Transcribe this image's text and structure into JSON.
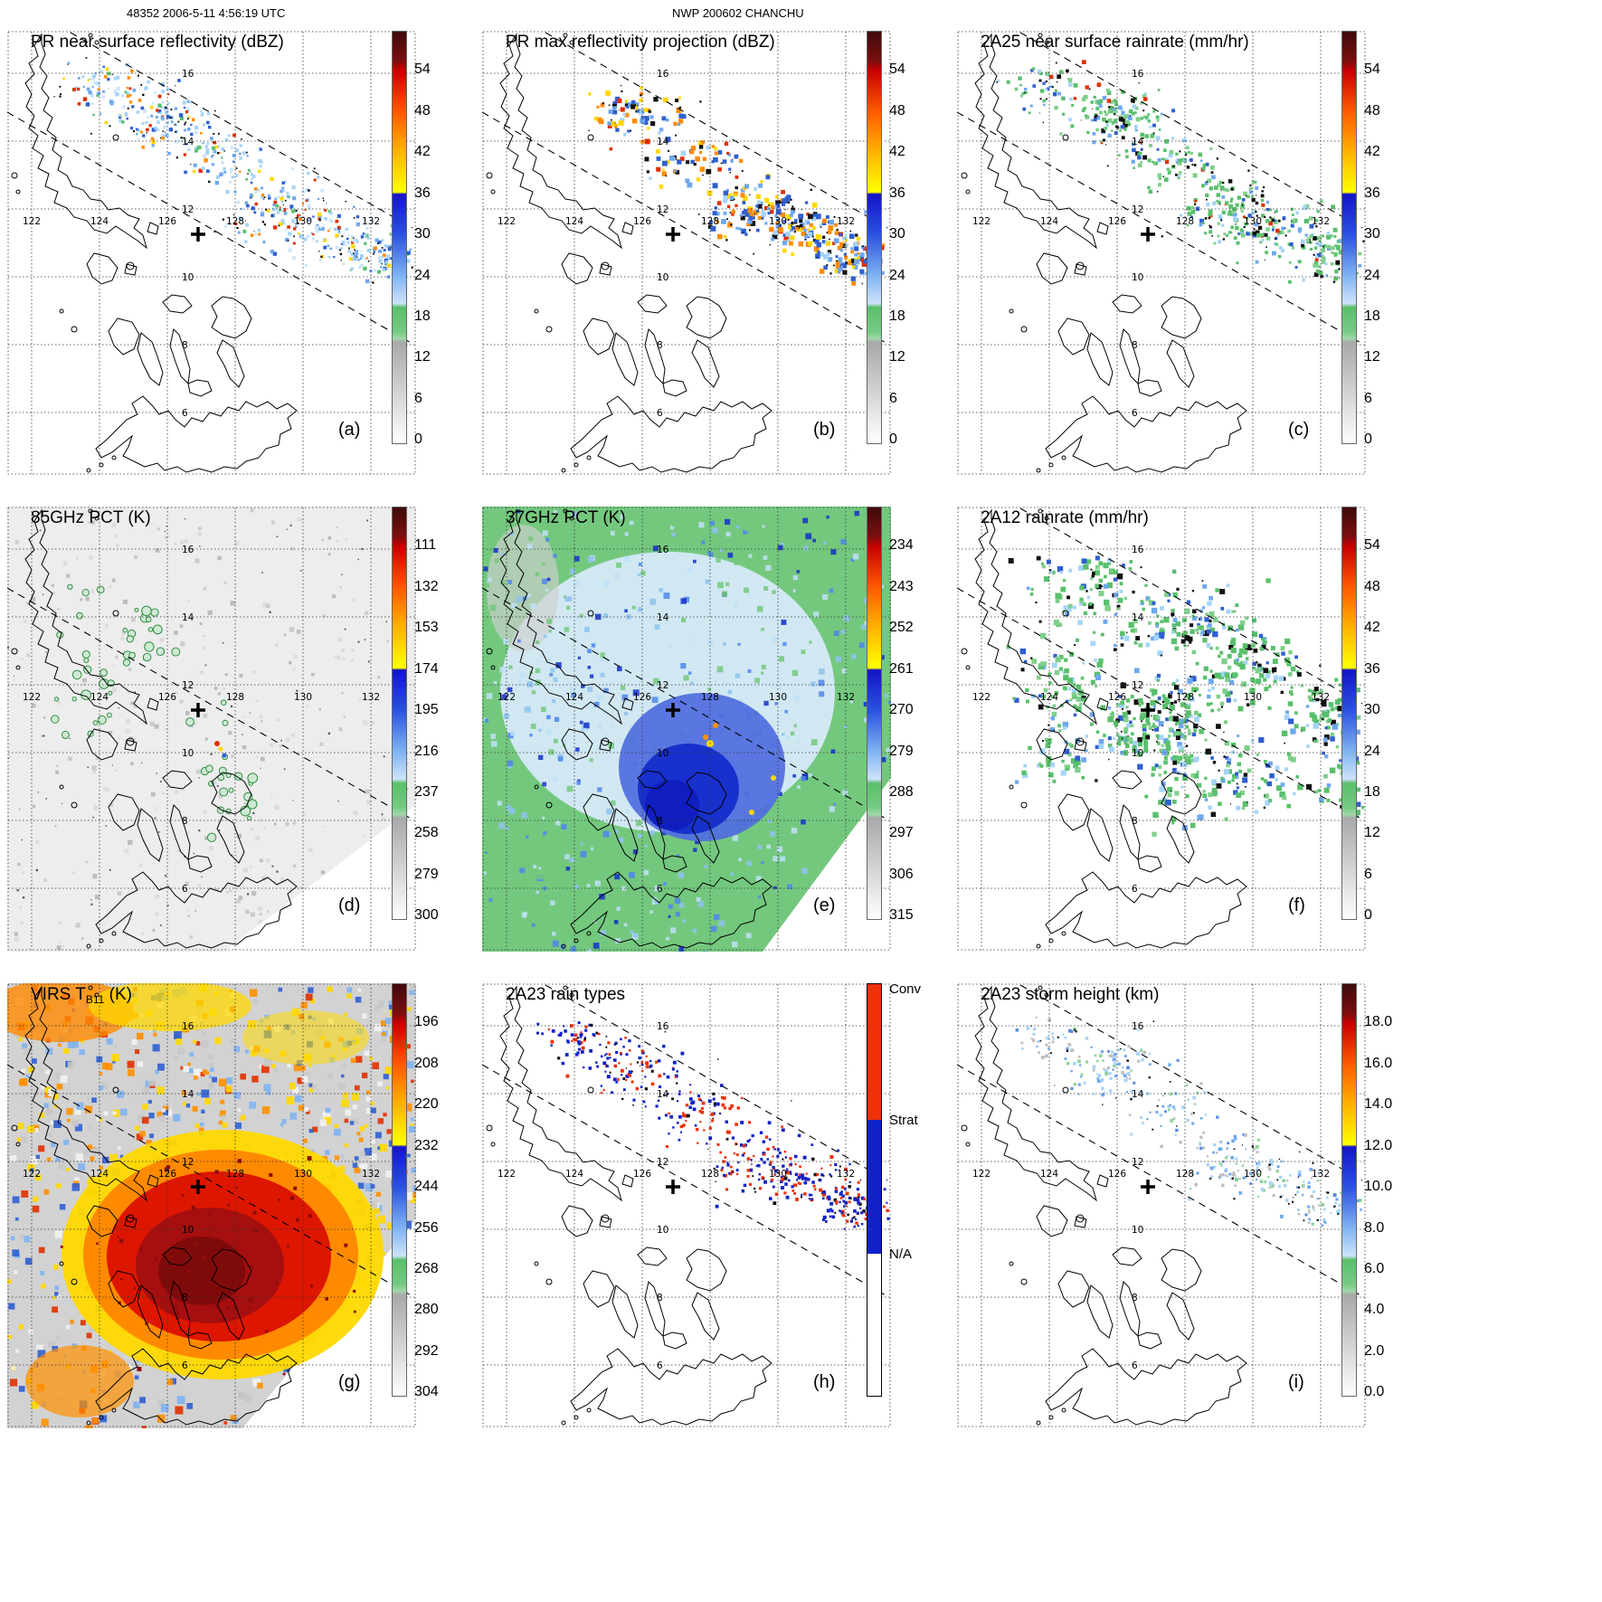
{
  "header": {
    "left": "48352 2006-5-11 4:56:19 UTC",
    "center": "NWP 200602 CHANCHU"
  },
  "map": {
    "lon_labels": [
      "122",
      "124",
      "126",
      "128",
      "130",
      "132"
    ],
    "lat_labels": [
      "16",
      "14",
      "12",
      "10",
      "8",
      "6"
    ]
  },
  "colors": {
    "standard_gradient": [
      [
        0,
        "#3f0a0a"
      ],
      [
        0.07,
        "#7a0f0f"
      ],
      [
        0.095,
        "#c80000"
      ],
      [
        0.194,
        "#ff5a00"
      ],
      [
        0.294,
        "#ffb400"
      ],
      [
        0.39,
        "#ffff00"
      ],
      [
        0.395,
        "#1414c8"
      ],
      [
        0.493,
        "#2a52e0"
      ],
      [
        0.592,
        "#7fb2f2"
      ],
      [
        0.66,
        "#cde3fa"
      ],
      [
        0.67,
        "#59c06a"
      ],
      [
        0.73,
        "#77ca84"
      ],
      [
        0.745,
        "#9fd8a8"
      ],
      [
        0.755,
        "#a9a9a9"
      ],
      [
        0.89,
        "#d8d8d8"
      ],
      [
        0.99,
        "#fbfbfb"
      ],
      [
        1,
        "#ffffff"
      ]
    ],
    "raintype": {
      "conv": "#f03008",
      "strat": "#1022c8",
      "na": "#ffffff"
    }
  },
  "panels": [
    {
      "id": "a",
      "letter": "(a)",
      "title": "PR near surface reflectivity (dBZ)",
      "colorbar": {
        "type": "standard",
        "ticks": [
          "54",
          "48",
          "42",
          "36",
          "30",
          "24",
          "18",
          "12",
          "6",
          "0"
        ]
      },
      "speckle_colors": [
        [
          "#a6d4f7",
          0.28
        ],
        [
          "#6fa8ee",
          0.2
        ],
        [
          "#2f5fd0",
          0.12
        ],
        [
          "#cfe6fb",
          0.15
        ],
        [
          "#59c06c",
          0.08
        ],
        [
          "#ffd800",
          0.05
        ],
        [
          "#ff8c00",
          0.06
        ],
        [
          "#e03000",
          0.06
        ]
      ]
    },
    {
      "id": "b",
      "letter": "(b)",
      "title": "PR max reflectivity projection (dBZ)",
      "colorbar": {
        "type": "standard",
        "ticks": [
          "54",
          "48",
          "42",
          "36",
          "30",
          "24",
          "18",
          "12",
          "6",
          "0"
        ]
      },
      "speckle_colors": [
        [
          "#2f5fd0",
          0.2
        ],
        [
          "#6fa8ee",
          0.18
        ],
        [
          "#ff8c00",
          0.2
        ],
        [
          "#ffd800",
          0.12
        ],
        [
          "#e03000",
          0.08
        ],
        [
          "#a6d4f7",
          0.12
        ],
        [
          "#101010",
          0.1
        ]
      ]
    },
    {
      "id": "c",
      "letter": "(c)",
      "title": "2A25 near surface rainrate (mm/hr)",
      "colorbar": {
        "type": "standard",
        "ticks": [
          "54",
          "48",
          "42",
          "36",
          "30",
          "24",
          "18",
          "12",
          "6",
          "0"
        ]
      },
      "speckle_colors": [
        [
          "#59c06c",
          0.36
        ],
        [
          "#7fcf8b",
          0.2
        ],
        [
          "#a6d4f7",
          0.12
        ],
        [
          "#6fa8ee",
          0.1
        ],
        [
          "#2f5fd0",
          0.06
        ],
        [
          "#e03000",
          0.05
        ],
        [
          "#101010",
          0.11
        ]
      ]
    },
    {
      "id": "d",
      "letter": "(d)",
      "title": "85GHz PCT (K)",
      "colorbar": {
        "type": "standard",
        "ticks": [
          "111",
          "132",
          "153",
          "174",
          "195",
          "216",
          "237",
          "258",
          "279",
          "300"
        ]
      },
      "speckle_colors": [
        [
          "#dcdcdc",
          0.5
        ],
        [
          "#cccccc",
          0.3
        ],
        [
          "#bdbdbd",
          0.2
        ]
      ]
    },
    {
      "id": "e",
      "letter": "(e)",
      "title": "37GHz PCT (K)",
      "colorbar": {
        "type": "standard",
        "ticks": [
          "234",
          "243",
          "252",
          "261",
          "270",
          "279",
          "288",
          "297",
          "306",
          "315"
        ]
      },
      "speckle_colors": [
        [
          "#bfe0f8",
          0.26
        ],
        [
          "#8fc2f0",
          0.2
        ],
        [
          "#74c87e",
          0.3
        ],
        [
          "#4f86ec",
          0.14
        ],
        [
          "#1430c8",
          0.1
        ]
      ]
    },
    {
      "id": "f",
      "letter": "(f)",
      "title": "2A12 rainrate (mm/hr)",
      "colorbar": {
        "type": "standard",
        "ticks": [
          "54",
          "48",
          "42",
          "36",
          "30",
          "24",
          "18",
          "12",
          "6",
          "0"
        ]
      },
      "speckle_colors": [
        [
          "#59c06c",
          0.44
        ],
        [
          "#7fcf8b",
          0.18
        ],
        [
          "#a6d4f7",
          0.12
        ],
        [
          "#6fa8ee",
          0.1
        ],
        [
          "#2f5fd0",
          0.07
        ],
        [
          "#101010",
          0.09
        ]
      ]
    },
    {
      "id": "g",
      "letter": "(g)",
      "title": "VIRS T",
      "title_sub": "B11",
      "title_rest": " (K)",
      "colorbar": {
        "type": "standard",
        "ticks": [
          "196",
          "208",
          "220",
          "232",
          "244",
          "256",
          "268",
          "280",
          "292",
          "304"
        ]
      },
      "speckle_colors": [
        [
          "#2f5fd0",
          0.15
        ],
        [
          "#7fb2f2",
          0.14
        ],
        [
          "#ffd800",
          0.2
        ],
        [
          "#ff9000",
          0.14
        ],
        [
          "#c8c8c8",
          0.16
        ],
        [
          "#f2f2f2",
          0.12
        ],
        [
          "#e03000",
          0.09
        ]
      ]
    },
    {
      "id": "h",
      "letter": "(h)",
      "title": "2A23 rain types",
      "colorbar": {
        "type": "raintype",
        "labels": [
          "Conv",
          "Strat",
          "N/A"
        ]
      },
      "speckle_colors": [
        [
          "#1022c8",
          0.58
        ],
        [
          "#f03008",
          0.36
        ],
        [
          "#101010",
          0.06
        ]
      ]
    },
    {
      "id": "i",
      "letter": "(i)",
      "title": "2A23 storm height (km)",
      "colorbar": {
        "type": "standard",
        "ticks": [
          "18.0",
          "16.0",
          "14.0",
          "12.0",
          "10.0",
          "8.0",
          "6.0",
          "4.0",
          "2.0",
          "0.0"
        ]
      },
      "speckle_colors": [
        [
          "#a6d4f7",
          0.34
        ],
        [
          "#6fa8ee",
          0.2
        ],
        [
          "#bfbfbf",
          0.24
        ],
        [
          "#8fd49a",
          0.12
        ],
        [
          "#5a8adf",
          0.1
        ]
      ]
    }
  ],
  "chart_data": [
    {
      "type": "heatmap",
      "panel": "(a)",
      "title": "PR near surface reflectivity (dBZ)",
      "colorbar_ticks": [
        54,
        48,
        42,
        36,
        30,
        24,
        18,
        12,
        6,
        0
      ],
      "x_ticks": [
        122,
        124,
        126,
        128,
        130,
        132
      ],
      "y_ticks": [
        16,
        14,
        12,
        10,
        8,
        6
      ],
      "annotations": [
        "storm center cross near 126.9E 11.3N",
        "two dashed PR swath edge lines"
      ]
    },
    {
      "type": "heatmap",
      "panel": "(b)",
      "title": "PR max reflectivity projection (dBZ)",
      "colorbar_ticks": [
        54,
        48,
        42,
        36,
        30,
        24,
        18,
        12,
        6,
        0
      ],
      "x_ticks": [
        122,
        124,
        126,
        128,
        130,
        132
      ],
      "y_ticks": [
        16,
        14,
        12,
        10,
        8,
        6
      ]
    },
    {
      "type": "heatmap",
      "panel": "(c)",
      "title": "2A25 near surface rainrate (mm/hr)",
      "colorbar_ticks": [
        54,
        48,
        42,
        36,
        30,
        24,
        18,
        12,
        6,
        0
      ],
      "x_ticks": [
        122,
        124,
        126,
        128,
        130,
        132
      ],
      "y_ticks": [
        16,
        14,
        12,
        10,
        8,
        6
      ]
    },
    {
      "type": "heatmap",
      "panel": "(d)",
      "title": "85GHz PCT (K)",
      "colorbar_ticks": [
        111,
        132,
        153,
        174,
        195,
        216,
        237,
        258,
        279,
        300
      ],
      "x_ticks": [
        122,
        124,
        126,
        128,
        130,
        132
      ],
      "y_ticks": [
        16,
        14,
        12,
        10,
        8,
        6
      ]
    },
    {
      "type": "heatmap",
      "panel": "(e)",
      "title": "37GHz PCT (K)",
      "colorbar_ticks": [
        234,
        243,
        252,
        261,
        270,
        279,
        288,
        297,
        306,
        315
      ],
      "x_ticks": [
        122,
        124,
        126,
        128,
        130,
        132
      ],
      "y_ticks": [
        16,
        14,
        12,
        10,
        8,
        6
      ]
    },
    {
      "type": "heatmap",
      "panel": "(f)",
      "title": "2A12 rainrate (mm/hr)",
      "colorbar_ticks": [
        54,
        48,
        42,
        36,
        30,
        24,
        18,
        12,
        6,
        0
      ],
      "x_ticks": [
        122,
        124,
        126,
        128,
        130,
        132
      ],
      "y_ticks": [
        16,
        14,
        12,
        10,
        8,
        6
      ]
    },
    {
      "type": "heatmap",
      "panel": "(g)",
      "title": "VIRS TB11 (K)",
      "colorbar_ticks": [
        196,
        208,
        220,
        232,
        244,
        256,
        268,
        280,
        292,
        304
      ],
      "x_ticks": [
        122,
        124,
        126,
        128,
        130,
        132
      ],
      "y_ticks": [
        16,
        14,
        12,
        10,
        8,
        6
      ]
    },
    {
      "type": "heatmap",
      "panel": "(h)",
      "title": "2A23 rain types",
      "colorbar_categories": [
        "Conv",
        "Strat",
        "N/A"
      ],
      "x_ticks": [
        122,
        124,
        126,
        128,
        130,
        132
      ],
      "y_ticks": [
        16,
        14,
        12,
        10,
        8,
        6
      ]
    },
    {
      "type": "heatmap",
      "panel": "(i)",
      "title": "2A23 storm height (km)",
      "colorbar_ticks": [
        18.0,
        16.0,
        14.0,
        12.0,
        10.0,
        8.0,
        6.0,
        4.0,
        2.0,
        0.0
      ],
      "x_ticks": [
        122,
        124,
        126,
        128,
        130,
        132
      ],
      "y_ticks": [
        16,
        14,
        12,
        10,
        8,
        6
      ]
    }
  ]
}
